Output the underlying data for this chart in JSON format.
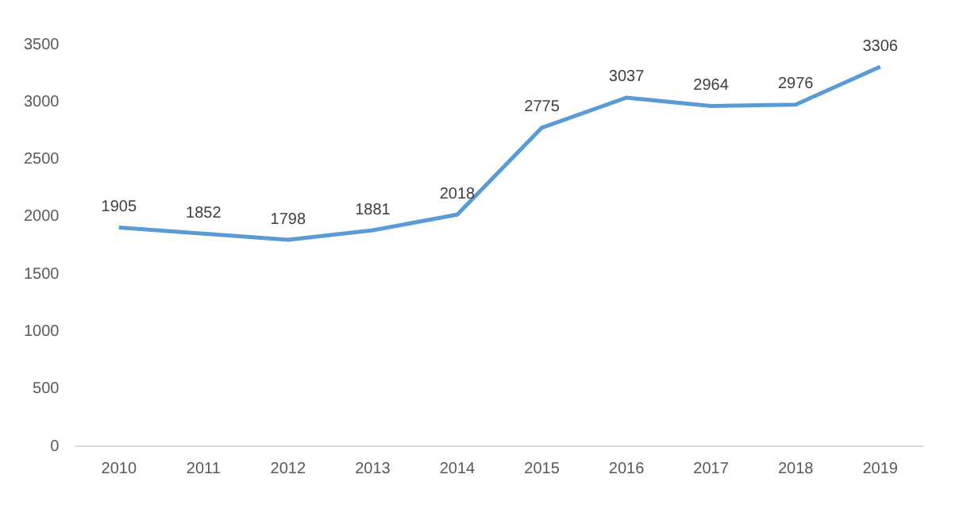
{
  "chart_data": {
    "type": "line",
    "categories": [
      "2010",
      "2011",
      "2012",
      "2013",
      "2014",
      "2015",
      "2016",
      "2017",
      "2018",
      "2019"
    ],
    "series": [
      {
        "color": "#5b9bd5",
        "values": [
          1905,
          1852,
          1798,
          1881,
          2018,
          2775,
          3037,
          2964,
          2976,
          3306
        ]
      }
    ],
    "ylim": [
      0,
      3500
    ],
    "yticks": [
      0,
      500,
      1000,
      1500,
      2000,
      2500,
      3000,
      3500
    ],
    "grid": false,
    "legend": false,
    "marker": "none",
    "line_style": "solid",
    "data_labels": true
  }
}
